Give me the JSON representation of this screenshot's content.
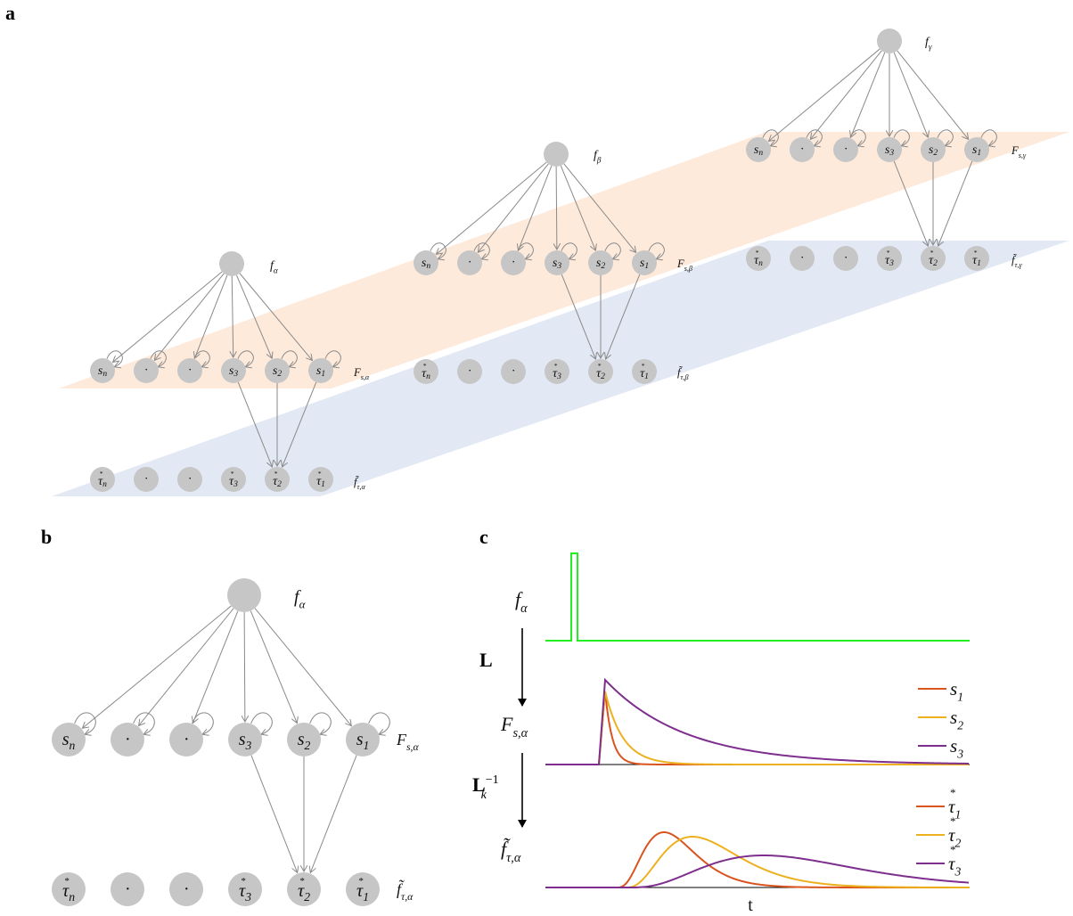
{
  "panels": {
    "a": "a",
    "b": "b",
    "c": "c"
  },
  "top_nodes": {
    "alpha": "f_α",
    "beta": "f_β",
    "gamma": "f_γ"
  },
  "s_nodes": [
    "s_n",
    "·",
    "·",
    "s_3",
    "s_2",
    "s_1"
  ],
  "tau_nodes": [
    "τ_n",
    "·",
    "·",
    "τ_3",
    "τ_2",
    "τ_1"
  ],
  "layer_labels": {
    "Fs_alpha": "F_{s,α}",
    "Fs_beta": "F_{s,β}",
    "Fs_gamma": "F_{s,γ}",
    "ft_alpha": "f̃_{τ,α}",
    "ft_beta": "f̃_{τ,β}",
    "ft_gamma": "f̃_{τ,γ}"
  },
  "plane_colors": {
    "orange": "#fde3cf",
    "blue": "#d6def0"
  },
  "panel_c": {
    "row1_label": "f_α",
    "op1": "L",
    "row2_label": "F_{s,α}",
    "op2": "L_k^{-1}",
    "row3_label": "f̃_{τ,α}",
    "xlabel": "t",
    "input_color": "#22ee22",
    "series_s": [
      {
        "name": "s_1",
        "color": "#d9541e"
      },
      {
        "name": "s_2",
        "color": "#edb120"
      },
      {
        "name": "s_3",
        "color": "#7e2f8e"
      }
    ],
    "series_tau": [
      {
        "name": "τ_1",
        "color": "#d9541e"
      },
      {
        "name": "τ_2",
        "color": "#edb120"
      },
      {
        "name": "τ_3",
        "color": "#7e2f8e"
      }
    ]
  }
}
